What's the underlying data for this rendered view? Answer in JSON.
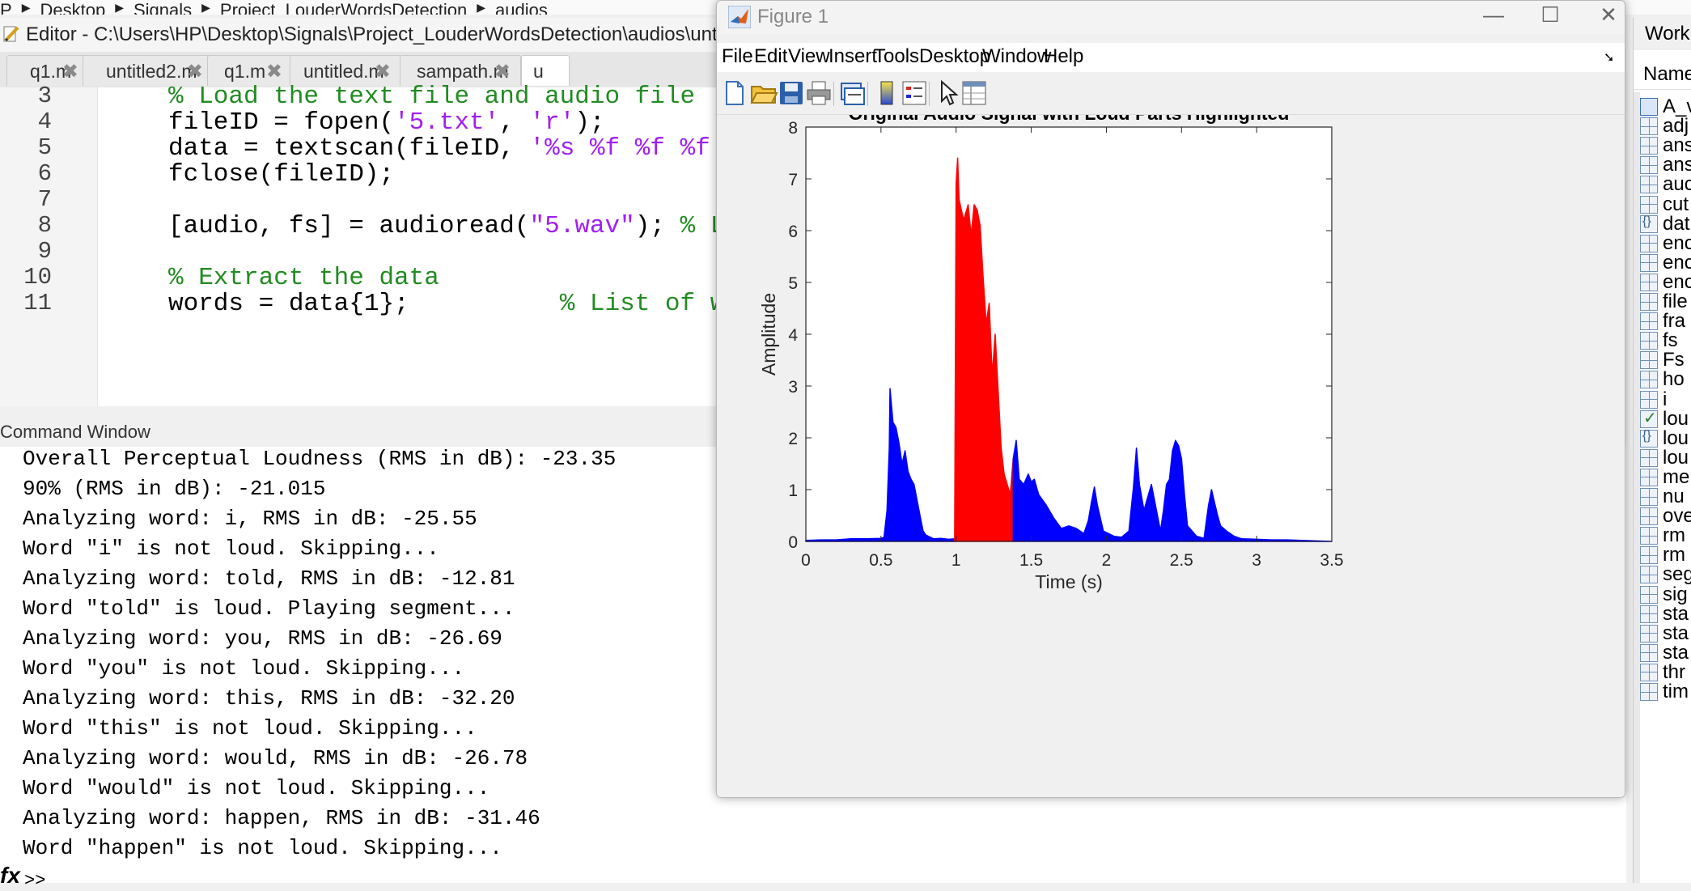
{
  "breadcrumb": [
    "P",
    "Desktop",
    "Signals",
    "Project_LouderWordsDetection",
    "audios"
  ],
  "editor": {
    "title": "Editor - C:\\Users\\HP\\Desktop\\Signals\\Project_LouderWordsDetection\\audios\\unt",
    "tabs": [
      "q1.m",
      "untitled2.m",
      "q1.m",
      "untitled.m",
      "sampath.m",
      "u"
    ],
    "line_numbers": [
      "3",
      "4",
      "5",
      "6",
      "7",
      "8",
      "9",
      "10",
      "11"
    ],
    "code": {
      "l3": "% Load the text file and audio file",
      "l4_pre": "fileID = fopen(",
      "l4_s1": "'5.txt'",
      "l4_mid": ", ",
      "l4_s2": "'r'",
      "l4_post": ");",
      "l5_pre": "data = textscan(fileID, ",
      "l5_s1": "'%s %f %f %f'",
      "l6": "fclose(fileID);",
      "l8_pre": "[audio, fs] = audioread(",
      "l8_s1": "\"5.wav\"",
      "l8_post": "); ",
      "l8_cmt": "% L",
      "l10": "% Extract the data",
      "l11_pre": "words = data{1};          ",
      "l11_cmt": "% List of w"
    }
  },
  "command_window": {
    "title": "Command Window",
    "lines": [
      "Overall Perceptual Loudness (RMS in dB): -23.35",
      "90% (RMS in dB): -21.015",
      "Analyzing word: i, RMS in dB: -25.55",
      "Word \"i\" is not loud. Skipping...",
      "Analyzing word: told, RMS in dB: -12.81",
      "Word \"told\" is loud. Playing segment...",
      "Analyzing word: you, RMS in dB: -26.69",
      "Word \"you\" is not loud. Skipping...",
      "Analyzing word: this, RMS in dB: -32.20",
      "Word \"this\" is not loud. Skipping...",
      "Analyzing word: would, RMS in dB: -26.78",
      "Word \"would\" is not loud. Skipping...",
      "Analyzing word: happen, RMS in dB: -31.46",
      "Word \"happen\" is not loud. Skipping..."
    ],
    "fx_label": "fx",
    "prompt": ">>"
  },
  "figure": {
    "window_title": "Figure 1",
    "menu": [
      "File",
      "Edit",
      "View",
      "Insert",
      "Tools",
      "Desktop",
      "Window",
      "Help"
    ],
    "toolbar_icons": [
      "new-figure-icon",
      "open-icon",
      "save-icon",
      "print-icon",
      "link-icon",
      "colorbar-icon",
      "legend-icon",
      "pointer-icon",
      "property-inspector-icon"
    ]
  },
  "chart_data": {
    "type": "area",
    "title": "Original Audio Signal with Loud Parts Highlighted",
    "xlabel": "Time (s)",
    "ylabel": "Amplitude",
    "xlim": [
      0,
      3.5
    ],
    "ylim": [
      0,
      8
    ],
    "xticks": [
      0,
      0.5,
      1,
      1.5,
      2,
      2.5,
      3,
      3.5
    ],
    "xtick_labels": [
      "0",
      "0.5",
      "1",
      "1.5",
      "2",
      "2.5",
      "3",
      "3.5"
    ],
    "yticks": [
      0,
      1,
      2,
      3,
      4,
      5,
      6,
      7,
      8
    ],
    "ytick_labels": [
      "0",
      "1",
      "2",
      "3",
      "4",
      "5",
      "6",
      "7",
      "8"
    ],
    "grid": false,
    "colors": {
      "signal": "#0000ff",
      "loud": "#ff0000"
    },
    "series": [
      {
        "color": "#0000ff",
        "x": [
          0,
          0.1,
          0.2,
          0.3,
          0.4,
          0.5,
          0.52,
          0.54,
          0.555,
          0.56,
          0.58,
          0.6,
          0.62,
          0.64,
          0.66,
          0.68,
          0.7,
          0.72,
          0.74,
          0.76,
          0.78,
          0.8,
          0.85,
          0.9,
          0.95,
          0.99
        ],
        "y": [
          0.02,
          0.03,
          0.03,
          0.05,
          0.05,
          0.06,
          0.08,
          0.6,
          1.8,
          2.95,
          2.3,
          2.2,
          1.9,
          1.5,
          1.75,
          1.35,
          1.2,
          1.1,
          0.8,
          0.5,
          0.2,
          0.12,
          0.05,
          0.06,
          0.04,
          0.05
        ]
      },
      {
        "color": "#ff0000",
        "x": [
          0.99,
          1.0,
          1.01,
          1.02,
          1.05,
          1.08,
          1.1,
          1.12,
          1.14,
          1.16,
          1.18,
          1.2,
          1.22,
          1.24,
          1.26,
          1.28,
          1.3,
          1.32,
          1.34,
          1.36,
          1.38
        ],
        "y": [
          0.05,
          6.9,
          7.4,
          6.6,
          6.2,
          6.5,
          5.9,
          6.5,
          6.4,
          6.1,
          5.1,
          4.2,
          4.6,
          3.2,
          4.0,
          2.9,
          1.8,
          1.3,
          1.1,
          0.9,
          1.6
        ]
      },
      {
        "color": "#0000ff",
        "x": [
          1.38,
          1.4,
          1.42,
          1.45,
          1.48,
          1.5,
          1.52,
          1.55,
          1.6,
          1.65,
          1.7,
          1.75,
          1.8,
          1.85,
          1.88,
          1.9,
          1.92,
          1.94,
          1.98,
          2.05,
          2.1,
          2.15,
          2.18,
          2.2,
          2.22,
          2.25,
          2.3,
          2.34,
          2.36,
          2.38,
          2.4,
          2.42,
          2.44,
          2.46,
          2.48,
          2.5,
          2.52,
          2.54,
          2.6,
          2.65,
          2.68,
          2.7,
          2.72,
          2.74,
          2.76,
          2.8,
          2.85,
          2.9,
          3.0,
          3.1,
          3.2,
          3.3,
          3.5
        ],
        "y": [
          1.6,
          1.95,
          1.2,
          1.1,
          1.3,
          1.15,
          1.2,
          0.9,
          0.7,
          0.45,
          0.25,
          0.3,
          0.25,
          0.15,
          0.4,
          0.75,
          1.05,
          0.7,
          0.2,
          0.1,
          0.08,
          0.2,
          1.05,
          1.8,
          1.1,
          0.6,
          1.1,
          0.5,
          0.2,
          0.6,
          1.1,
          1.2,
          1.75,
          1.95,
          1.85,
          1.6,
          0.9,
          0.3,
          0.1,
          0.06,
          0.7,
          1.0,
          0.75,
          0.5,
          0.3,
          0.2,
          0.1,
          0.05,
          0.04,
          0.03,
          0.03,
          0.02,
          0.0
        ]
      }
    ]
  },
  "workspace": {
    "title": "Work",
    "col_name": "Name",
    "items": [
      {
        "name": "A_v",
        "icon": "obj"
      },
      {
        "name": "adj",
        "icon": "matrix"
      },
      {
        "name": "ans",
        "icon": "matrix"
      },
      {
        "name": "ans",
        "icon": "matrix"
      },
      {
        "name": "auc",
        "icon": "matrix"
      },
      {
        "name": "cut",
        "icon": "matrix"
      },
      {
        "name": "dat",
        "icon": "struct"
      },
      {
        "name": "enc",
        "icon": "matrix"
      },
      {
        "name": "enc",
        "icon": "matrix"
      },
      {
        "name": "enc",
        "icon": "matrix"
      },
      {
        "name": "file",
        "icon": "matrix"
      },
      {
        "name": "fra",
        "icon": "matrix"
      },
      {
        "name": "fs",
        "icon": "matrix"
      },
      {
        "name": "Fs",
        "icon": "matrix"
      },
      {
        "name": "ho",
        "icon": "matrix"
      },
      {
        "name": "i",
        "icon": "matrix"
      },
      {
        "name": "lou",
        "icon": "bool"
      },
      {
        "name": "lou",
        "icon": "struct"
      },
      {
        "name": "lou",
        "icon": "matrix"
      },
      {
        "name": "me",
        "icon": "matrix"
      },
      {
        "name": "nu",
        "icon": "matrix"
      },
      {
        "name": "ove",
        "icon": "matrix"
      },
      {
        "name": "rm",
        "icon": "matrix"
      },
      {
        "name": "rm",
        "icon": "matrix"
      },
      {
        "name": "seg",
        "icon": "matrix"
      },
      {
        "name": "sig",
        "icon": "matrix"
      },
      {
        "name": "sta",
        "icon": "matrix"
      },
      {
        "name": "sta",
        "icon": "matrix"
      },
      {
        "name": "sta",
        "icon": "matrix"
      },
      {
        "name": "thr",
        "icon": "matrix"
      },
      {
        "name": "tim",
        "icon": "matrix"
      }
    ]
  }
}
